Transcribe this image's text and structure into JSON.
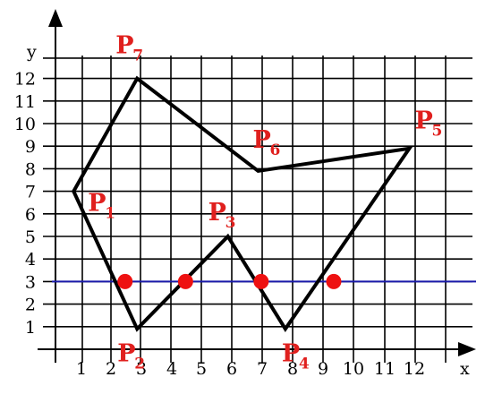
{
  "axes": {
    "x_label": "x",
    "y_label": "y",
    "x_ticks": [
      "1",
      "2",
      "3",
      "4",
      "5",
      "6",
      "7",
      "8",
      "9",
      "10",
      "11",
      "12"
    ],
    "y_ticks": [
      "1",
      "2",
      "3",
      "4",
      "5",
      "6",
      "7",
      "8",
      "9",
      "10",
      "11",
      "12"
    ]
  },
  "polygon": {
    "color": "#000000",
    "vertices": [
      {
        "name": "P",
        "sub": "1",
        "x": 0.6,
        "y": 7.0
      },
      {
        "name": "P",
        "sub": "2",
        "x": 2.7,
        "y": 0.9
      },
      {
        "name": "P",
        "sub": "3",
        "x": 5.7,
        "y": 5.0
      },
      {
        "name": "P",
        "sub": "4",
        "x": 7.6,
        "y": 0.9
      },
      {
        "name": "P",
        "sub": "5",
        "x": 11.7,
        "y": 8.9
      },
      {
        "name": "P",
        "sub": "6",
        "x": 6.7,
        "y": 7.9
      },
      {
        "name": "P",
        "sub": "7",
        "x": 2.7,
        "y": 12.0
      }
    ]
  },
  "scanline": {
    "y": 3,
    "color": "#1a1aaa"
  },
  "intersections": {
    "color": "#ee1111",
    "x": [
      2.3,
      4.3,
      6.8,
      9.2
    ]
  }
}
